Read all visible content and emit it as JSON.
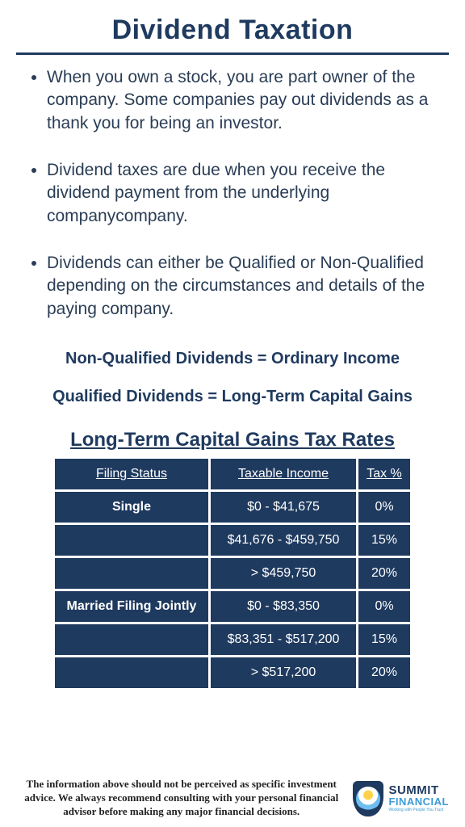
{
  "title": "Dividend Taxation",
  "bullets": [
    "When you own a stock, you are part owner of the company. Some companies pay out dividends as a thank you for being an investor.",
    "Dividend taxes are due when you receive the dividend payment from the underlying companycompany.",
    "Dividends can either be Qualified or Non-Qualified depending on the circumstances and details of the paying company."
  ],
  "equation1": "Non-Qualified Dividends = Ordinary Income",
  "equation2": "Qualified Dividends = Long-Term Capital Gains",
  "table": {
    "title": "Long-Term Capital Gains Tax Rates",
    "columns": [
      "Filing Status",
      "Taxable Income",
      "Tax %"
    ],
    "rows": [
      {
        "status": "Single",
        "income": "$0 - $41,675",
        "tax": "0%",
        "bold_status": true
      },
      {
        "status": "",
        "income": "$41,676 - $459,750",
        "tax": "15%",
        "bold_status": false
      },
      {
        "status": "",
        "income": "> $459,750",
        "tax": "20%",
        "bold_status": false
      },
      {
        "status": "Married Filing Jointly",
        "income": "$0 - $83,350",
        "tax": "0%",
        "bold_status": true
      },
      {
        "status": "",
        "income": "$83,351 - $517,200",
        "tax": "15%",
        "bold_status": false
      },
      {
        "status": "",
        "income": "> $517,200",
        "tax": "20%",
        "bold_status": false
      }
    ],
    "cell_bg": "#1f3a5f",
    "cell_fg": "#ffffff"
  },
  "disclaimer": "The information above should not be perceived as specific investment advice. We always recommend consulting with your personal financial advisor before making any major financial decisions.",
  "logo": {
    "top": "SUMMIT",
    "bottom": "FINANCIAL",
    "tagline": "Working with People You Trust"
  },
  "colors": {
    "navy": "#1f3a5f",
    "blue": "#3b9bd6"
  }
}
